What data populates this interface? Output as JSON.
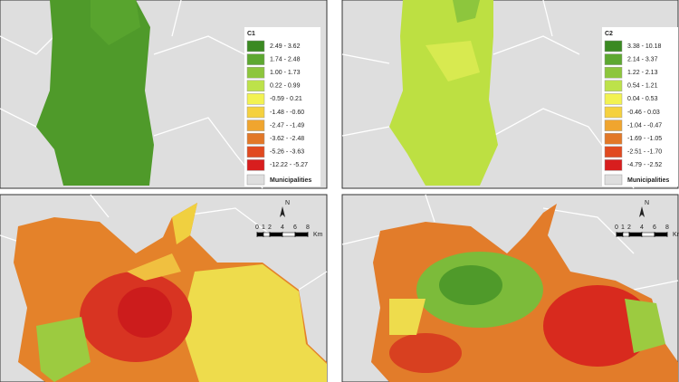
{
  "legends": [
    {
      "title": "C1",
      "items": [
        {
          "label": "2.49 - 3.62",
          "color": "#3b8a22"
        },
        {
          "label": "1.74 - 2.48",
          "color": "#5da831"
        },
        {
          "label": "1.00 - 1.73",
          "color": "#8dc63d"
        },
        {
          "label": "0.22 - 0.99",
          "color": "#bde24a"
        },
        {
          "label": "-0.59 - 0.21",
          "color": "#f2f252"
        },
        {
          "label": "-1.48 - -0.60",
          "color": "#f5d13f"
        },
        {
          "label": "-2.47 - -1.49",
          "color": "#f0a52f"
        },
        {
          "label": "-3.62 - -2.48",
          "color": "#e27828"
        },
        {
          "label": "-5.26 - -3.63",
          "color": "#e14a20"
        },
        {
          "label": "-12.22 - -5.27",
          "color": "#d81e1e"
        }
      ],
      "other_label": "Municipalities"
    },
    {
      "title": "C2",
      "items": [
        {
          "label": "3.38 - 10.18",
          "color": "#3b8a22"
        },
        {
          "label": "2.14 - 3.37",
          "color": "#5da831"
        },
        {
          "label": "1.22 - 2.13",
          "color": "#8dc63d"
        },
        {
          "label": "0.54 - 1.21",
          "color": "#bde24a"
        },
        {
          "label": "0.04 - 0.53",
          "color": "#f2f252"
        },
        {
          "label": "-0.46 - 0.03",
          "color": "#f5d13f"
        },
        {
          "label": "-1.04 - -0.47",
          "color": "#f0a52f"
        },
        {
          "label": "-1.69 - -1.05",
          "color": "#e27828"
        },
        {
          "label": "-2.51 - -1.70",
          "color": "#e14a20"
        },
        {
          "label": "-4.79 - -2.52",
          "color": "#d81e1e"
        }
      ],
      "other_label": "Municipalities"
    }
  ],
  "scales": [
    {
      "north": "N",
      "ticks": [
        0,
        1,
        2,
        4,
        6,
        8
      ],
      "unit": "Km"
    },
    {
      "north": "N",
      "ticks": [
        0,
        1,
        2,
        4,
        6,
        8
      ],
      "unit": "Km"
    }
  ]
}
